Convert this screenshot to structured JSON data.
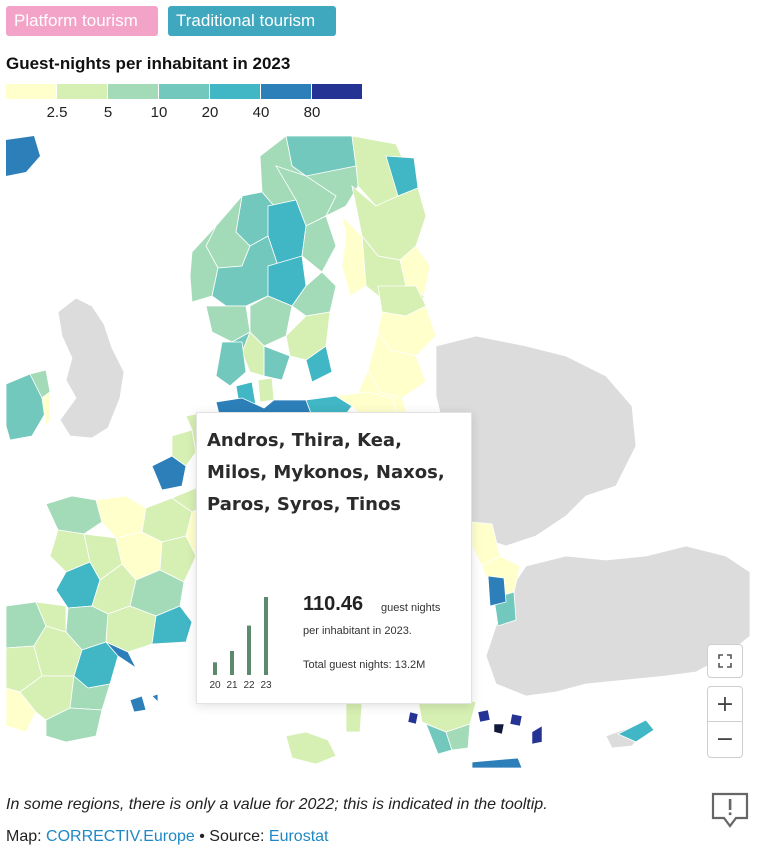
{
  "toggles": {
    "platform_label": "Platform tourism",
    "traditional_label": "Traditional tourism",
    "platform_color": "#f3a3c8",
    "traditional_color": "#3fa8bf"
  },
  "legend": {
    "title": "Guest-nights per inhabitant in 2023",
    "ticks": [
      "2.5",
      "5",
      "10",
      "20",
      "40",
      "80"
    ],
    "colors": [
      "#ffffcc",
      "#d6efb3",
      "#a3dbb8",
      "#73c8bd",
      "#41b6c4",
      "#2c7fb8",
      "#253494"
    ],
    "no_data_color": "#dddddd"
  },
  "tooltip": {
    "region": "Andros, Thira, Kea, Milos, Mykonos, Naxos, Paros, Syros, Tinos",
    "value": "110.46",
    "value_unit": "guest nights",
    "value_desc": "per inhabitant in 2023.",
    "total": "Total guest nights: 13.2M",
    "bar_color": "#5b8a6e"
  },
  "chart_data": {
    "type": "bar",
    "categories": [
      "20",
      "21",
      "22",
      "23"
    ],
    "values": [
      18,
      34,
      70,
      110.46
    ]
  },
  "controls": {
    "fullscreen_icon": "fullscreen-icon",
    "zoom_in": "+",
    "zoom_out": "−"
  },
  "footer": {
    "note": "In some regions, there is only a value for 2022; this is indicated in the tooltip.",
    "map_prefix": "Map: ",
    "map_source": "CORRECTIV.Europe",
    "separator": " • Source: ",
    "data_source": "Eurostat"
  }
}
